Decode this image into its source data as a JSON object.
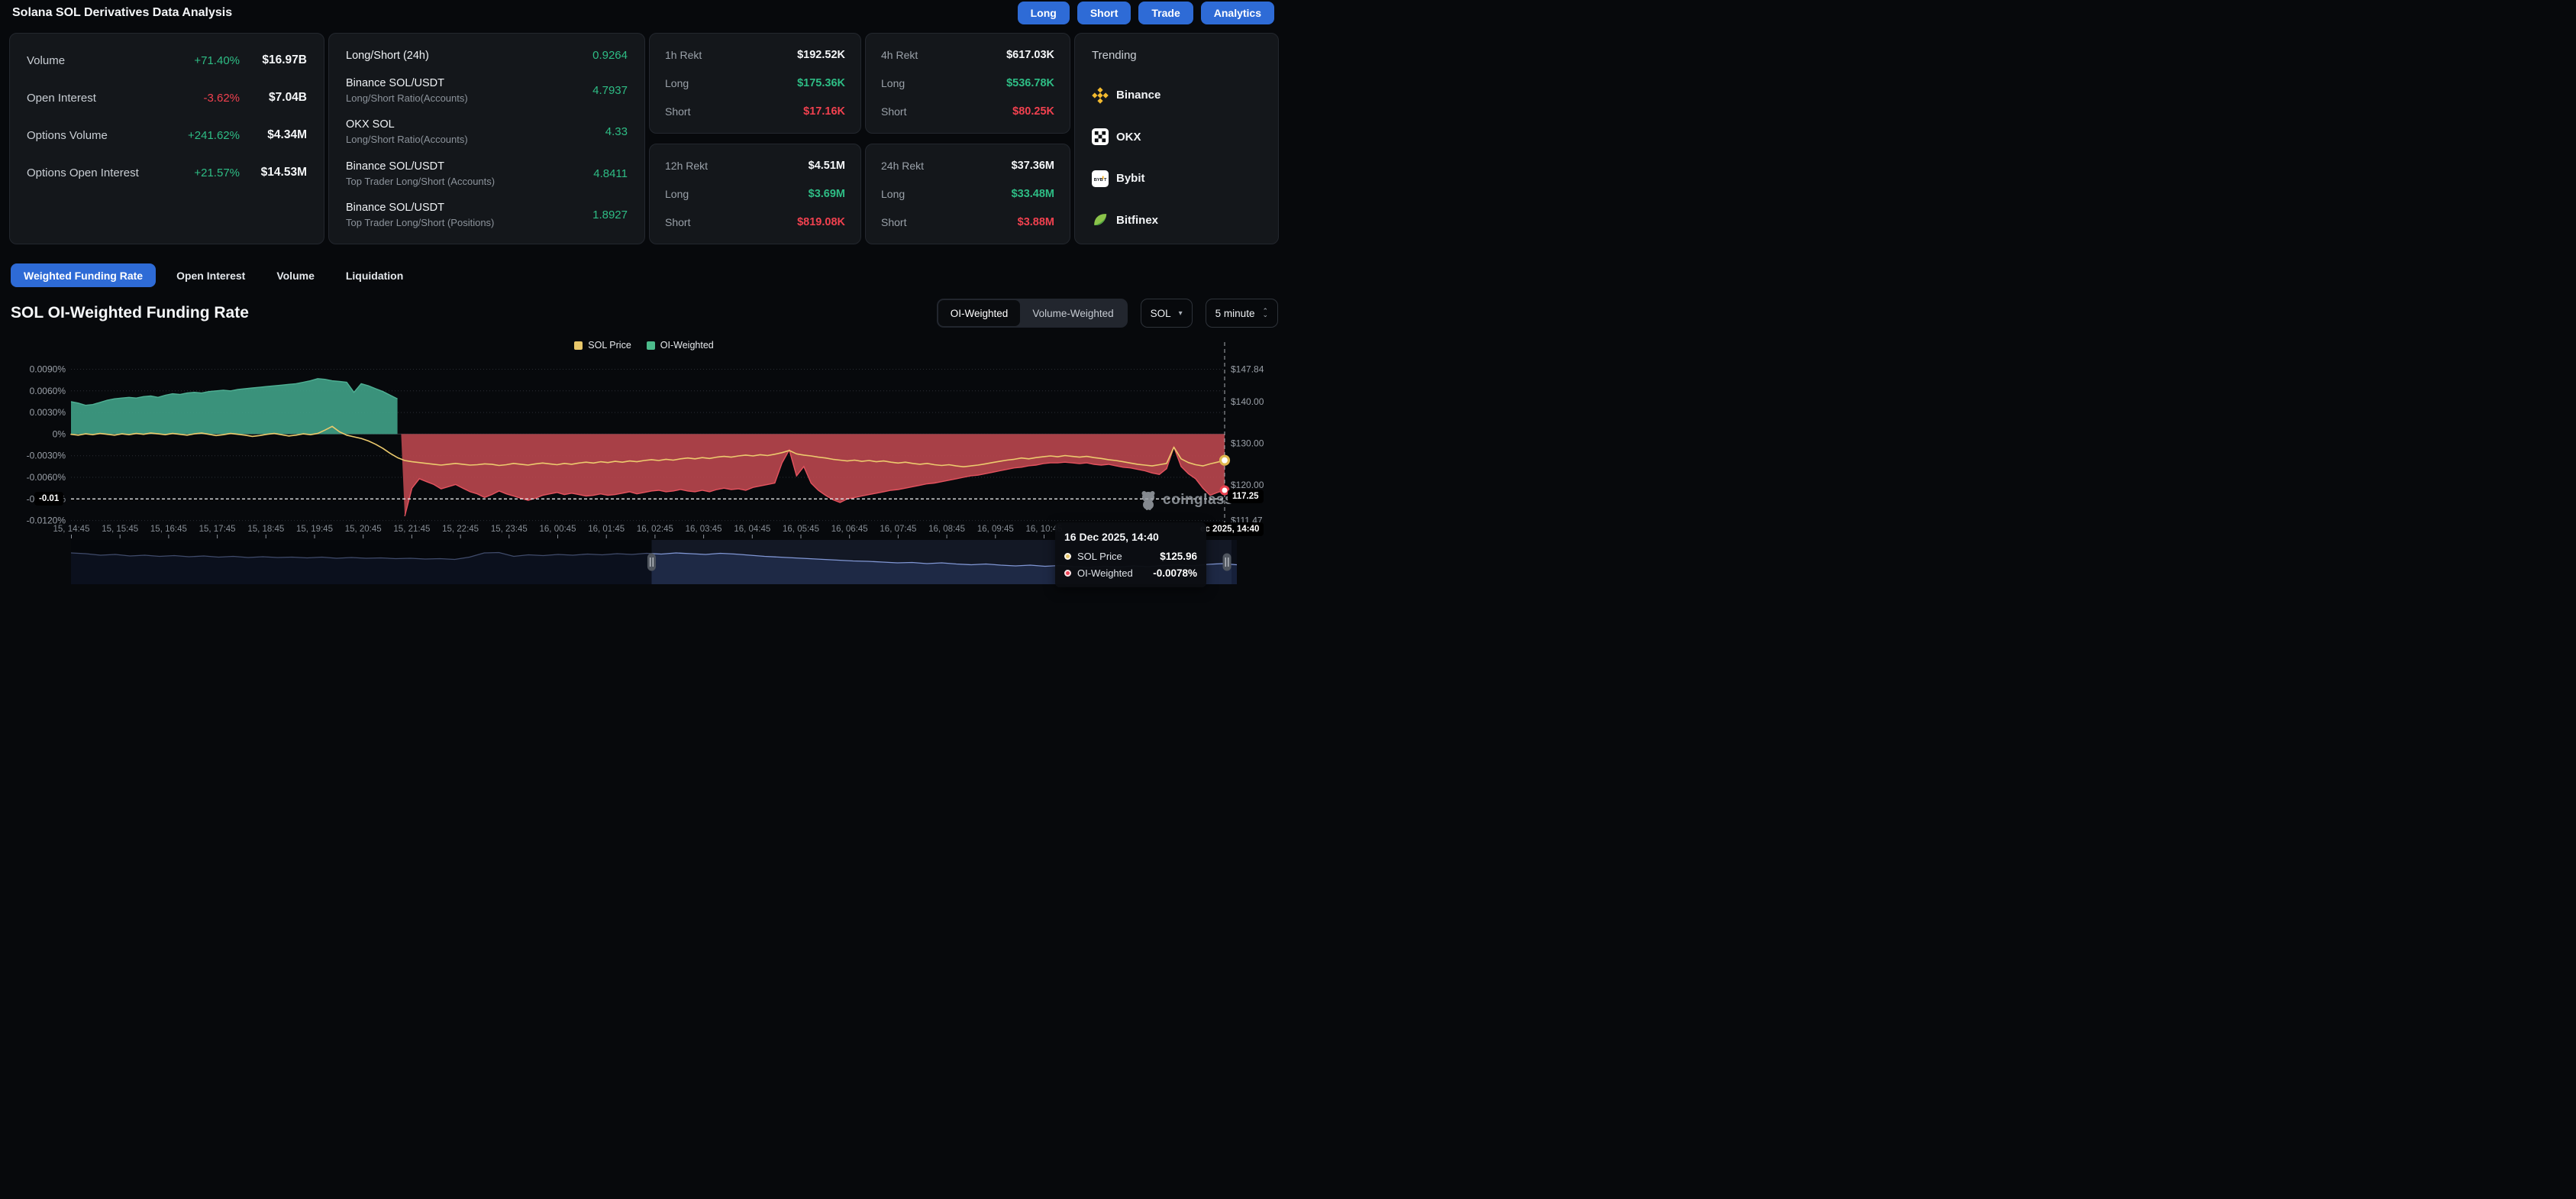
{
  "header": {
    "title": "Solana SOL Derivatives Data Analysis",
    "buttons": [
      {
        "label": "Long"
      },
      {
        "label": "Short"
      },
      {
        "label": "Trade"
      },
      {
        "label": "Analytics"
      }
    ]
  },
  "stats_card": {
    "rows": [
      {
        "label": "Volume",
        "change": "+71.40%",
        "direction": "up",
        "value": "$16.97B"
      },
      {
        "label": "Open Interest",
        "change": "-3.62%",
        "direction": "down",
        "value": "$7.04B"
      },
      {
        "label": "Options Volume",
        "change": "+241.62%",
        "direction": "up",
        "value": "$4.34M"
      },
      {
        "label": "Options Open Interest",
        "change": "+21.57%",
        "direction": "up",
        "value": "$14.53M"
      }
    ]
  },
  "ratio_card": {
    "rows": [
      {
        "title": "Long/Short (24h)",
        "subtitle": "",
        "value": "0.9264"
      },
      {
        "title": "Binance SOL/USDT",
        "subtitle": "Long/Short Ratio(Accounts)",
        "value": "4.7937"
      },
      {
        "title": "OKX SOL",
        "subtitle": "Long/Short Ratio(Accounts)",
        "value": "4.33"
      },
      {
        "title": "Binance SOL/USDT",
        "subtitle": "Top Trader Long/Short (Accounts)",
        "value": "4.8411"
      },
      {
        "title": "Binance SOL/USDT",
        "subtitle": "Top Trader Long/Short (Positions)",
        "value": "1.8927"
      }
    ]
  },
  "rekt_cards": [
    {
      "title": "1h Rekt",
      "total": "$192.52K",
      "long_label": "Long",
      "long": "$175.36K",
      "short_label": "Short",
      "short": "$17.16K"
    },
    {
      "title": "4h Rekt",
      "total": "$617.03K",
      "long_label": "Long",
      "long": "$536.78K",
      "short_label": "Short",
      "short": "$80.25K"
    },
    {
      "title": "12h Rekt",
      "total": "$4.51M",
      "long_label": "Long",
      "long": "$3.69M",
      "short_label": "Short",
      "short": "$819.08K"
    },
    {
      "title": "24h Rekt",
      "total": "$37.36M",
      "long_label": "Long",
      "long": "$33.48M",
      "short_label": "Short",
      "short": "$3.88M"
    }
  ],
  "trending": {
    "title": "Trending",
    "items": [
      {
        "name": "Binance",
        "icon": "binance"
      },
      {
        "name": "OKX",
        "icon": "okx"
      },
      {
        "name": "Bybit",
        "icon": "bybit"
      },
      {
        "name": "Bitfinex",
        "icon": "bitfinex"
      }
    ]
  },
  "tabs": [
    {
      "label": "Weighted Funding Rate",
      "active": true
    },
    {
      "label": "Open Interest",
      "active": false
    },
    {
      "label": "Volume",
      "active": false
    },
    {
      "label": "Liquidation",
      "active": false
    }
  ],
  "section": {
    "title": "SOL OI-Weighted Funding Rate"
  },
  "controls": {
    "toggle_options": [
      {
        "label": "OI-Weighted",
        "active": true
      },
      {
        "label": "Volume-Weighted",
        "active": false
      }
    ],
    "symbol": "SOL",
    "interval": "5 minute"
  },
  "icons": {
    "caret_down": "▾",
    "spinner_up": "⌃",
    "spinner_down": "⌄"
  },
  "legend": [
    {
      "label": "SOL Price",
      "color": "#E8C76A"
    },
    {
      "label": "OI-Weighted",
      "color": "#4CBB8B"
    }
  ],
  "watermark": {
    "text": "coinglass"
  },
  "tooltip": {
    "time": "16 Dec 2025, 14:40",
    "rows": [
      {
        "label": "SOL Price",
        "value": "$125.96",
        "color": "#E8C76A"
      },
      {
        "label": "OI-Weighted",
        "value": "-0.0078%",
        "color": "#EE4456"
      }
    ]
  },
  "chart_data": {
    "type": "line",
    "title": "SOL OI-Weighted Funding Rate",
    "grid": true,
    "legend_position": "top-center",
    "left_axis": {
      "unit": "%",
      "ticks": [
        {
          "label": "0.0090%",
          "value": 0.009
        },
        {
          "label": "0.0060%",
          "value": 0.006
        },
        {
          "label": "0.0030%",
          "value": 0.003
        },
        {
          "label": "0%",
          "value": 0
        },
        {
          "label": "-0.0030%",
          "value": -0.003
        },
        {
          "label": "-0.0060%",
          "value": -0.006
        },
        {
          "label": "-0.0090%",
          "value": -0.009,
          "highlight": true
        },
        {
          "label": "-0.0120%",
          "value": -0.012
        }
      ],
      "range": [
        -0.012,
        0.009
      ]
    },
    "right_axis": {
      "unit": "$",
      "ticks": [
        {
          "label": "$147.84",
          "value": 147.84
        },
        {
          "label": "$140.00",
          "value": 140.0
        },
        {
          "label": "$130.00",
          "value": 130.0
        },
        {
          "label": "$120.00",
          "value": 120.0
        },
        {
          "label": "$111.47",
          "value": 111.47
        }
      ],
      "range": [
        111.47,
        147.84
      ]
    },
    "x_labels": [
      "15, 14:45",
      "15, 15:45",
      "15, 16:45",
      "15, 17:45",
      "15, 18:45",
      "15, 19:45",
      "15, 20:45",
      "15, 21:45",
      "15, 22:45",
      "15, 23:45",
      "16, 00:45",
      "16, 01:45",
      "16, 02:45",
      "16, 03:45",
      "16, 04:45",
      "16, 05:45",
      "16, 06:45",
      "16, 07:45",
      "16, 08:45",
      "16, 09:45",
      "16, 10:45"
    ],
    "series": [
      {
        "name": "OI-Weighted",
        "axis": "percent",
        "positive_color": "#3F9E86",
        "negative_color": "#BF4850",
        "values": [
          0.0045,
          0.0043,
          0.004,
          0.0041,
          0.0044,
          0.0047,
          0.0049,
          0.005,
          0.0051,
          0.005,
          0.0052,
          0.0053,
          0.0051,
          0.0054,
          0.0056,
          0.0055,
          0.0057,
          0.0058,
          0.0057,
          0.0059,
          0.006,
          0.0061,
          0.006,
          0.0062,
          0.0063,
          0.0064,
          0.0065,
          0.0066,
          0.0067,
          0.0068,
          0.0069,
          0.007,
          0.0072,
          0.0074,
          0.0077,
          0.0076,
          0.0074,
          0.0073,
          0.0072,
          0.0058,
          0.007,
          0.0067,
          0.0063,
          0.0059,
          0.0054,
          0.0049,
          -0.0114,
          -0.0075,
          -0.0062,
          -0.0066,
          -0.007,
          -0.0076,
          -0.0073,
          -0.007,
          -0.0075,
          -0.008,
          -0.0083,
          -0.0088,
          -0.0084,
          -0.0079,
          -0.0083,
          -0.0086,
          -0.0089,
          -0.0092,
          -0.0089,
          -0.0085,
          -0.0083,
          -0.0081,
          -0.0084,
          -0.0082,
          -0.0084,
          -0.0086,
          -0.0085,
          -0.0083,
          -0.0085,
          -0.0084,
          -0.0082,
          -0.008,
          -0.0083,
          -0.0081,
          -0.0079,
          -0.0078,
          -0.008,
          -0.0079,
          -0.0077,
          -0.0079,
          -0.008,
          -0.0078,
          -0.008,
          -0.0077,
          -0.0075,
          -0.0077,
          -0.0076,
          -0.0078,
          -0.0074,
          -0.0072,
          -0.007,
          -0.0068,
          -0.004,
          -0.0022,
          -0.0058,
          -0.0045,
          -0.0068,
          -0.0078,
          -0.0085,
          -0.0091,
          -0.0095,
          -0.009,
          -0.0088,
          -0.0086,
          -0.0084,
          -0.0082,
          -0.008,
          -0.0078,
          -0.0077,
          -0.0075,
          -0.0073,
          -0.0071,
          -0.0069,
          -0.0068,
          -0.0066,
          -0.0064,
          -0.0062,
          -0.006,
          -0.0058,
          -0.0057,
          -0.0055,
          -0.0053,
          -0.0051,
          -0.0049,
          -0.0047,
          -0.0046,
          -0.0044,
          -0.0043,
          -0.0041,
          -0.004,
          -0.004,
          -0.0039,
          -0.004,
          -0.0041,
          -0.004,
          -0.0042,
          -0.0043,
          -0.0042,
          -0.0044,
          -0.0046,
          -0.0047,
          -0.0049,
          -0.0051,
          -0.0054,
          -0.0056,
          -0.0048,
          -0.0018,
          -0.0045,
          -0.0055,
          -0.0062,
          -0.0075,
          -0.0085,
          -0.0081,
          -0.0078
        ]
      },
      {
        "name": "SOL Price",
        "axis": "price",
        "color": "#ECCA6D",
        "values": [
          132.2,
          132.0,
          132.3,
          132.1,
          132.4,
          132.2,
          132.0,
          132.3,
          132.1,
          132.4,
          132.2,
          132.5,
          132.3,
          132.1,
          132.4,
          132.2,
          132.0,
          132.3,
          132.5,
          132.2,
          131.9,
          132.1,
          132.4,
          132.2,
          132.0,
          131.7,
          131.9,
          132.2,
          132.4,
          132.1,
          131.8,
          132.0,
          132.3,
          132.1,
          132.4,
          133.2,
          134.1,
          132.8,
          132.0,
          131.6,
          131.2,
          130.6,
          129.8,
          128.8,
          127.6,
          126.6,
          125.9,
          125.6,
          125.4,
          125.2,
          125.0,
          124.8,
          125.0,
          125.2,
          125.0,
          124.8,
          124.9,
          125.1,
          125.0,
          124.7,
          124.9,
          125.2,
          125.0,
          124.8,
          125.1,
          125.3,
          125.1,
          124.9,
          125.2,
          125.0,
          125.3,
          125.5,
          125.3,
          125.6,
          125.4,
          125.7,
          125.5,
          125.8,
          125.6,
          125.9,
          126.1,
          125.9,
          126.2,
          126.0,
          126.3,
          126.5,
          126.3,
          126.6,
          126.4,
          126.7,
          126.9,
          126.7,
          127.0,
          127.2,
          127.0,
          127.3,
          127.1,
          127.4,
          127.8,
          128.3,
          127.5,
          127.2,
          127.0,
          126.7,
          126.5,
          126.2,
          126.0,
          125.8,
          126.0,
          125.7,
          125.9,
          125.6,
          125.8,
          125.5,
          125.3,
          125.5,
          125.2,
          125.0,
          125.2,
          124.9,
          124.7,
          124.9,
          124.6,
          124.4,
          124.6,
          124.8,
          125.1,
          125.4,
          125.7,
          126.0,
          126.2,
          126.5,
          126.3,
          126.6,
          126.8,
          127.0,
          126.8,
          127.1,
          126.9,
          126.7,
          126.9,
          126.6,
          126.4,
          126.1,
          125.9,
          125.6,
          125.3,
          125.0,
          124.8,
          124.6,
          124.9,
          125.2,
          129.1,
          126.3,
          125.4,
          124.9,
          124.6,
          125.1,
          125.5,
          125.96
        ]
      }
    ],
    "navigator": {
      "values": [
        0.24,
        0.26,
        0.3,
        0.28,
        0.32,
        0.3,
        0.33,
        0.31,
        0.34,
        0.32,
        0.35,
        0.33,
        0.36,
        0.34,
        0.36,
        0.35,
        0.37,
        0.35,
        0.38,
        0.36,
        0.38,
        0.37,
        0.39,
        0.38,
        0.4,
        0.39,
        0.41,
        0.35,
        0.24,
        0.23,
        0.33,
        0.29,
        0.31,
        0.28,
        0.3,
        0.27,
        0.29,
        0.26,
        0.28,
        0.25,
        0.27,
        0.24,
        0.26,
        0.28,
        0.25,
        0.27,
        0.3,
        0.33,
        0.35,
        0.37,
        0.39,
        0.41,
        0.43,
        0.45,
        0.46,
        0.48,
        0.5,
        0.49,
        0.52,
        0.5,
        0.53,
        0.55,
        0.53,
        0.56,
        0.58,
        0.56,
        0.59,
        0.57,
        0.6,
        0.62,
        0.59,
        0.61,
        0.58,
        0.6,
        0.57,
        0.55,
        0.58,
        0.54,
        0.52,
        0.55
      ],
      "handles": [
        0.498,
        0.9915
      ]
    },
    "crosshair": {
      "time": "16 Dec 2025, 14:40",
      "sol_price": 125.96,
      "oi_weighted": -0.0078,
      "price_badge": "117.25",
      "left_badge": "-0.01",
      "x_badge_visible": "ec 2025, 14:40"
    }
  }
}
